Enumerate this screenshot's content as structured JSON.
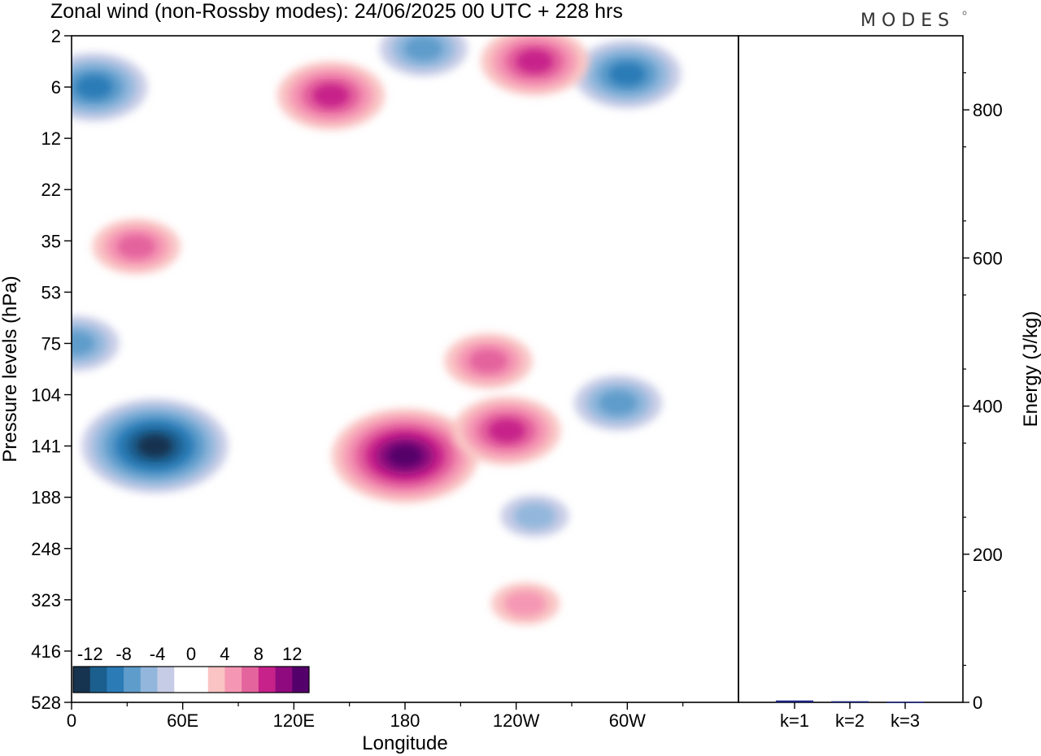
{
  "title": "Zonal wind (non-Rossby modes):  24/06/2025  00 UTC  + 228 hrs",
  "logo": "MODES",
  "chart_data": [
    {
      "type": "heatmap",
      "xlabel": "Longitude",
      "ylabel": "Pressure levels (hPa)",
      "x_ticks": [
        "0",
        "60E",
        "120E",
        "180",
        "120W",
        "60W"
      ],
      "y_ticks": [
        "2",
        "6",
        "12",
        "22",
        "35",
        "53",
        "75",
        "104",
        "141",
        "188",
        "248",
        "323",
        "416",
        "528"
      ],
      "xlim": [
        0,
        360
      ],
      "colorbar": {
        "labels": [
          "-12",
          "-8",
          "-4",
          "0",
          "4",
          "8",
          "12"
        ],
        "colors": [
          "#16334f",
          "#1b5f8e",
          "#2b7bb7",
          "#5e9ccb",
          "#93b7dc",
          "#c7cce6",
          "#ffffff",
          "#ffffff",
          "#f9c4c3",
          "#f597b4",
          "#e4649d",
          "#c7218a",
          "#8e0a7e",
          "#54006b"
        ]
      },
      "blobs": [
        {
          "lon": 45,
          "p": 141,
          "value": -12
        },
        {
          "lon": 12,
          "p": 6,
          "value": -8
        },
        {
          "lon": 190,
          "p": 3,
          "value": -6
        },
        {
          "lon": 300,
          "p": 5,
          "value": -8
        },
        {
          "lon": 2,
          "p": 75,
          "value": -6
        },
        {
          "lon": 295,
          "p": 110,
          "value": -5
        },
        {
          "lon": 250,
          "p": 210,
          "value": -4
        },
        {
          "lon": 180,
          "p": 150,
          "value": 14
        },
        {
          "lon": 140,
          "p": 7,
          "value": 8
        },
        {
          "lon": 250,
          "p": 4,
          "value": 8
        },
        {
          "lon": 225,
          "p": 85,
          "value": 6
        },
        {
          "lon": 35,
          "p": 37,
          "value": 5
        },
        {
          "lon": 235,
          "p": 130,
          "value": 7
        },
        {
          "lon": 245,
          "p": 330,
          "value": 4
        }
      ]
    },
    {
      "type": "bar",
      "categories": [
        "k=1",
        "k=2",
        "k=3"
      ],
      "values": [
        2.5,
        1.5,
        0.8
      ],
      "ylabel": "Energy (J/kg)",
      "ylim": [
        0,
        900
      ],
      "y_ticks": [
        "0",
        "200",
        "400",
        "600",
        "800"
      ],
      "bar_color": "#1a237e"
    }
  ]
}
